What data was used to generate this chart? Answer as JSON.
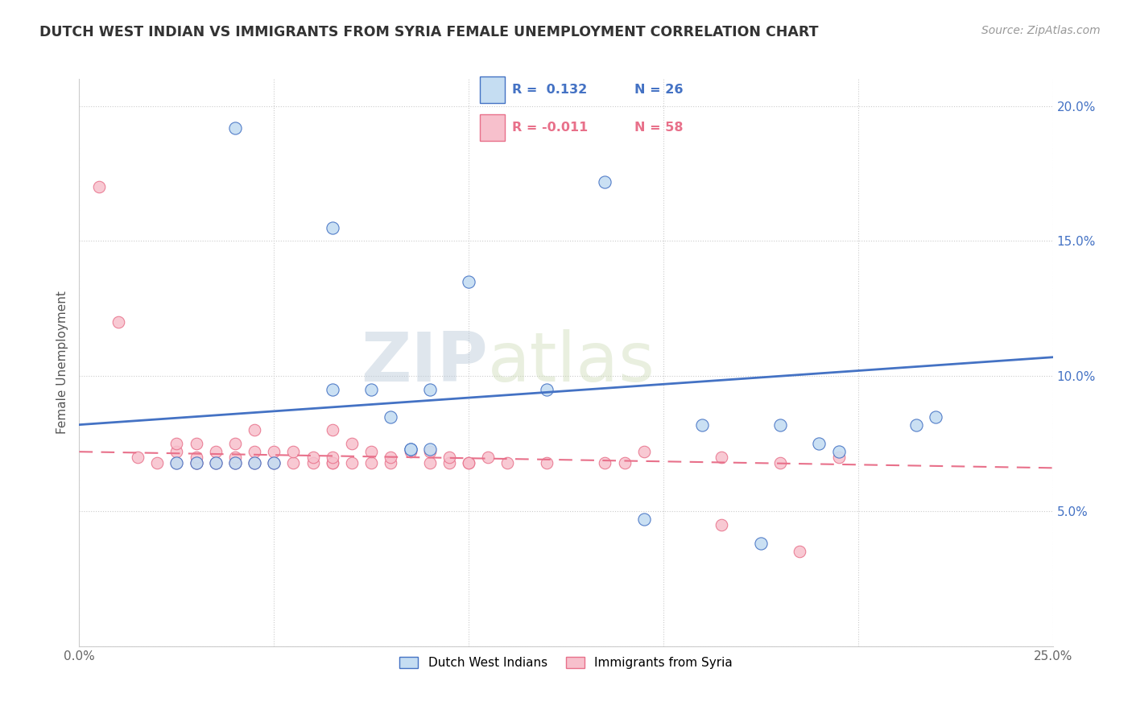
{
  "title": "DUTCH WEST INDIAN VS IMMIGRANTS FROM SYRIA FEMALE UNEMPLOYMENT CORRELATION CHART",
  "source": "Source: ZipAtlas.com",
  "xlabel": "",
  "ylabel": "Female Unemployment",
  "xlim": [
    0.0,
    0.25
  ],
  "ylim": [
    0.0,
    0.21
  ],
  "xticks": [
    0.0,
    0.05,
    0.1,
    0.15,
    0.2,
    0.25
  ],
  "xticklabels": [
    "0.0%",
    "",
    "",
    "",
    "",
    "25.0%"
  ],
  "yticks": [
    0.0,
    0.05,
    0.1,
    0.15,
    0.2
  ],
  "yticklabels": [
    "",
    "5.0%",
    "10.0%",
    "15.0%",
    "20.0%"
  ],
  "legend_r1": "R =  0.132",
  "legend_n1": "N = 26",
  "legend_r2": "R = -0.011",
  "legend_n2": "N = 58",
  "watermark_zip": "ZIP",
  "watermark_atlas": "atlas",
  "color_blue": "#c5ddf2",
  "color_pink": "#f7c0cc",
  "color_blue_line": "#4472c4",
  "color_pink_line": "#e8708a",
  "dutch_west_indian_x": [
    0.04,
    0.065,
    0.1,
    0.135,
    0.18,
    0.065,
    0.075,
    0.08,
    0.09,
    0.12,
    0.085,
    0.085,
    0.09,
    0.025,
    0.03,
    0.035,
    0.04,
    0.045,
    0.05,
    0.19,
    0.195,
    0.215,
    0.145,
    0.16,
    0.175,
    0.22
  ],
  "dutch_west_indian_y": [
    0.192,
    0.155,
    0.135,
    0.172,
    0.082,
    0.095,
    0.095,
    0.085,
    0.095,
    0.095,
    0.073,
    0.073,
    0.073,
    0.068,
    0.068,
    0.068,
    0.068,
    0.068,
    0.068,
    0.075,
    0.072,
    0.082,
    0.047,
    0.082,
    0.038,
    0.085
  ],
  "syria_x": [
    0.005,
    0.01,
    0.015,
    0.02,
    0.025,
    0.025,
    0.025,
    0.03,
    0.03,
    0.03,
    0.03,
    0.03,
    0.035,
    0.035,
    0.035,
    0.04,
    0.04,
    0.04,
    0.04,
    0.045,
    0.045,
    0.045,
    0.045,
    0.05,
    0.05,
    0.05,
    0.055,
    0.055,
    0.06,
    0.06,
    0.065,
    0.065,
    0.065,
    0.065,
    0.07,
    0.07,
    0.075,
    0.075,
    0.08,
    0.08,
    0.085,
    0.09,
    0.09,
    0.095,
    0.095,
    0.1,
    0.1,
    0.105,
    0.11,
    0.12,
    0.135,
    0.14,
    0.145,
    0.165,
    0.165,
    0.18,
    0.185,
    0.195
  ],
  "syria_y": [
    0.17,
    0.12,
    0.07,
    0.068,
    0.068,
    0.072,
    0.075,
    0.068,
    0.068,
    0.068,
    0.07,
    0.075,
    0.068,
    0.068,
    0.072,
    0.068,
    0.068,
    0.07,
    0.075,
    0.068,
    0.068,
    0.072,
    0.08,
    0.068,
    0.068,
    0.072,
    0.068,
    0.072,
    0.068,
    0.07,
    0.068,
    0.068,
    0.07,
    0.08,
    0.068,
    0.075,
    0.068,
    0.072,
    0.068,
    0.07,
    0.072,
    0.068,
    0.072,
    0.068,
    0.07,
    0.068,
    0.068,
    0.07,
    0.068,
    0.068,
    0.068,
    0.068,
    0.072,
    0.045,
    0.07,
    0.068,
    0.035,
    0.07
  ],
  "blue_line_x0": 0.0,
  "blue_line_y0": 0.082,
  "blue_line_x1": 0.25,
  "blue_line_y1": 0.107,
  "pink_line_x0": 0.0,
  "pink_line_y0": 0.072,
  "pink_line_x1": 0.25,
  "pink_line_y1": 0.066
}
